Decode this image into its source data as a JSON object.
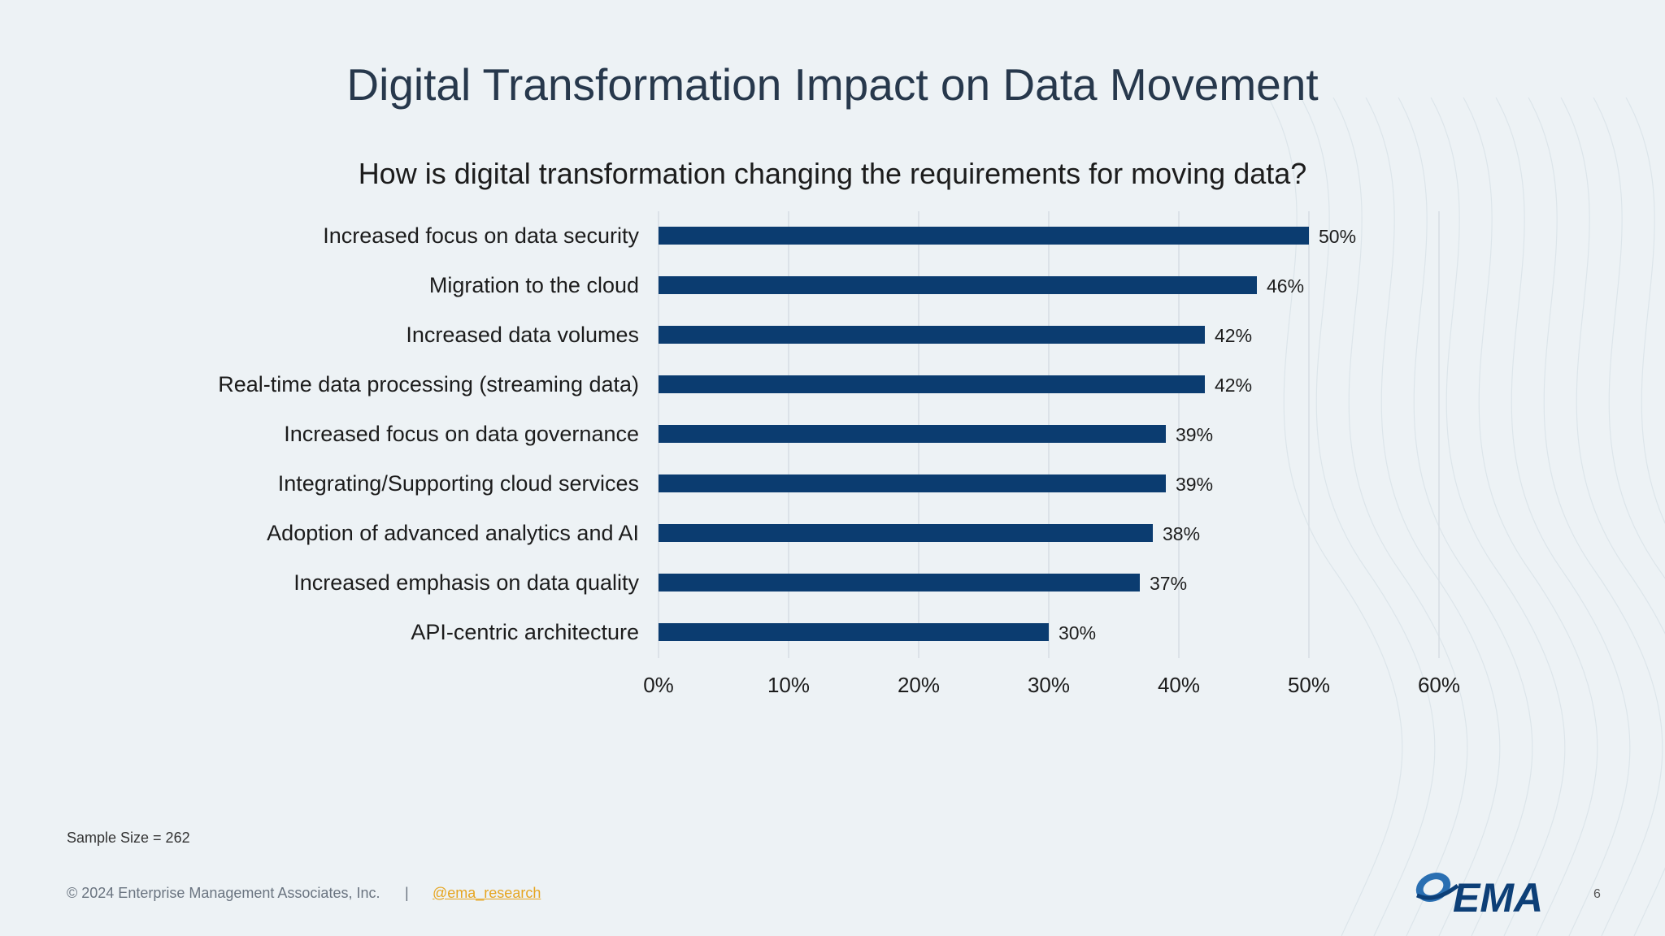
{
  "slide": {
    "title": "Digital Transformation Impact on Data Movement",
    "sample_size": "Sample Size = 262",
    "page_number": "6"
  },
  "footer": {
    "copyright": "© 2024 Enterprise Management Associates, Inc.",
    "separator": "|",
    "handle": "@ema_research"
  },
  "logo": {
    "text": "EMA",
    "color": "#0d3f77",
    "accent": "#2a6fb2"
  },
  "colors": {
    "bar": "#0b3c70",
    "grid": "#d6dde3",
    "text": "#1c1c1c"
  },
  "chart_data": {
    "type": "bar",
    "orientation": "horizontal",
    "title": "How is digital transformation changing the requirements for moving data?",
    "categories": [
      "Increased focus on data security",
      "Migration to the cloud",
      "Increased data volumes",
      "Real-time data processing (streaming data)",
      "Increased focus on data governance",
      "Integrating/Supporting cloud services",
      "Adoption of advanced analytics and AI",
      "Increased emphasis on data quality",
      "API-centric architecture"
    ],
    "values": [
      50,
      46,
      42,
      42,
      39,
      39,
      38,
      37,
      30
    ],
    "value_labels": [
      "50%",
      "46%",
      "42%",
      "42%",
      "39%",
      "39%",
      "38%",
      "37%",
      "30%"
    ],
    "xlim": [
      0,
      60
    ],
    "xticks": [
      0,
      10,
      20,
      30,
      40,
      50,
      60
    ],
    "xtick_labels": [
      "0%",
      "10%",
      "20%",
      "30%",
      "40%",
      "50%",
      "60%"
    ],
    "grid": true,
    "legend": "none"
  }
}
